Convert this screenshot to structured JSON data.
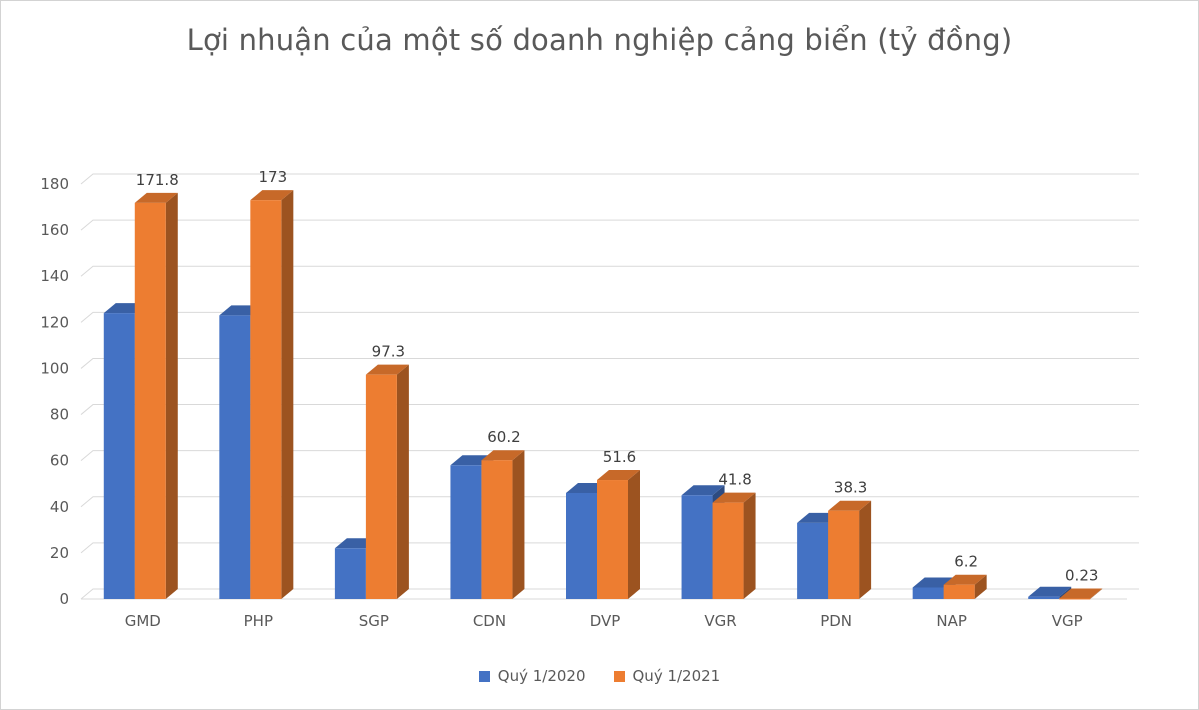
{
  "chart_data": {
    "type": "bar",
    "variant": "3d-clustered-column",
    "title": "Lợi nhuận của một số doanh nghiệp cảng biển (tỷ đồng)",
    "categories": [
      "GMD",
      "PHP",
      "SGP",
      "CDN",
      "DVP",
      "VGR",
      "PDN",
      "NAP",
      "VGP"
    ],
    "series": [
      {
        "key": "quy-1-2020",
        "name": "Quý 1/2020",
        "color": "#4472C4",
        "values": [
          124,
          123,
          22,
          58,
          46,
          45,
          33,
          5,
          1
        ]
      },
      {
        "key": "quy-1-2021",
        "name": "Quý 1/2021",
        "color": "#ED7D31",
        "values": [
          171.8,
          173,
          97.3,
          60.2,
          51.6,
          41.8,
          38.3,
          6.2,
          0.23
        ],
        "labels": [
          "171.8",
          "173",
          "97.3",
          "60.2",
          "51.6",
          "41.8",
          "38.3",
          "6.2",
          "0.23"
        ]
      }
    ],
    "ylim": [
      0,
      180
    ],
    "yticks": [
      0,
      20,
      40,
      60,
      80,
      100,
      120,
      140,
      160,
      180
    ],
    "grid": true,
    "legend_position": "bottom",
    "axis_color": "#595959",
    "gridline_color": "#D9D9D9",
    "label_color": "#3F3F3F",
    "title_color": "#595959"
  }
}
